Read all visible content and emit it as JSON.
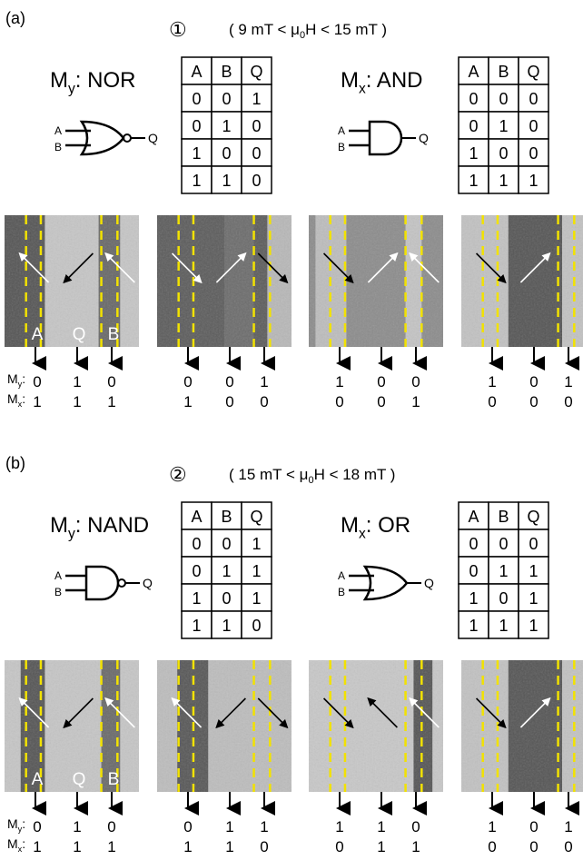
{
  "panels": [
    {
      "label": "(a)",
      "condition": {
        "marker": "①",
        "prefix": "( 9 mT < μ",
        "sub": "0",
        "suffix": "H < 15 mT )"
      },
      "gates": [
        {
          "symbol": "M",
          "sub": "y",
          "name": ": NOR",
          "pins": [
            "A",
            "B",
            "Q"
          ],
          "table": {
            "header": [
              "A",
              "B",
              "Q"
            ],
            "rows": [
              [
                0,
                0,
                1
              ],
              [
                0,
                1,
                0
              ],
              [
                1,
                0,
                0
              ],
              [
                1,
                1,
                0
              ]
            ]
          }
        },
        {
          "symbol": "M",
          "sub": "x",
          "name": ": AND",
          "pins": [
            "A",
            "B",
            "Q"
          ],
          "table": {
            "header": [
              "A",
              "B",
              "Q"
            ],
            "rows": [
              [
                0,
                0,
                0
              ],
              [
                0,
                1,
                0
              ],
              [
                1,
                0,
                0
              ],
              [
                1,
                1,
                1
              ]
            ]
          }
        }
      ],
      "image_labels": [
        "A",
        "Q",
        "B"
      ],
      "readout": [
        {
          "symbol": "M",
          "sub": "y",
          "sep": ":",
          "values": [
            [
              0,
              1,
              0
            ],
            [
              0,
              0,
              1
            ],
            [
              1,
              0,
              0
            ],
            [
              1,
              0,
              1
            ]
          ]
        },
        {
          "symbol": "M",
          "sub": "x",
          "sep": ":",
          "values": [
            [
              1,
              1,
              1
            ],
            [
              1,
              0,
              0
            ],
            [
              0,
              0,
              1
            ],
            [
              0,
              0,
              0
            ]
          ]
        }
      ]
    },
    {
      "label": "(b)",
      "condition": {
        "marker": "②",
        "prefix": "( 15 mT < μ",
        "sub": "0",
        "suffix": "H < 18 mT )"
      },
      "gates": [
        {
          "symbol": "M",
          "sub": "y",
          "name": ": NAND",
          "pins": [
            "A",
            "B",
            "Q"
          ],
          "table": {
            "header": [
              "A",
              "B",
              "Q"
            ],
            "rows": [
              [
                0,
                0,
                1
              ],
              [
                0,
                1,
                1
              ],
              [
                1,
                0,
                1
              ],
              [
                1,
                1,
                0
              ]
            ]
          }
        },
        {
          "symbol": "M",
          "sub": "x",
          "name": ": OR",
          "pins": [
            "A",
            "B",
            "Q"
          ],
          "table": {
            "header": [
              "A",
              "B",
              "Q"
            ],
            "rows": [
              [
                0,
                0,
                0
              ],
              [
                0,
                1,
                1
              ],
              [
                1,
                0,
                1
              ],
              [
                1,
                1,
                1
              ]
            ]
          }
        }
      ],
      "image_labels": [
        "A",
        "Q",
        "B"
      ],
      "readout": [
        {
          "symbol": "M",
          "sub": "y",
          "sep": ":",
          "values": [
            [
              0,
              1,
              0
            ],
            [
              0,
              1,
              1
            ],
            [
              1,
              1,
              0
            ],
            [
              1,
              0,
              1
            ]
          ]
        },
        {
          "symbol": "M",
          "sub": "x",
          "sep": ":",
          "values": [
            [
              1,
              1,
              1
            ],
            [
              1,
              1,
              0
            ],
            [
              0,
              1,
              1
            ],
            [
              0,
              0,
              0
            ]
          ]
        }
      ]
    }
  ]
}
